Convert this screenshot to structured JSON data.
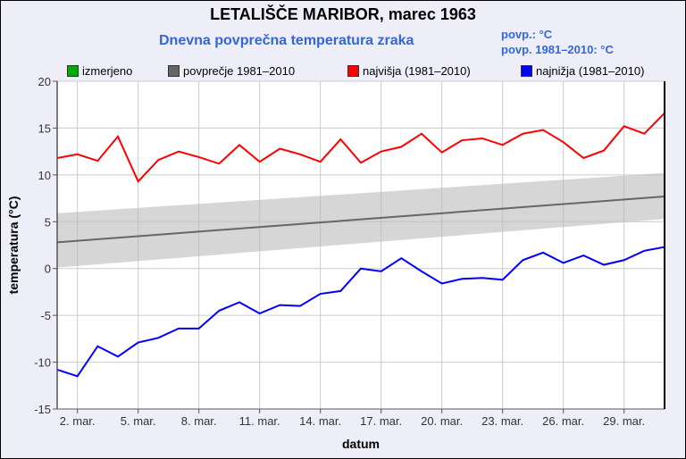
{
  "title": "LETALIŠČE MARIBOR, marec 1963",
  "subtitle": "Dnevna povprečna temperatura zraka",
  "stats": {
    "avg_label": "povp.:   °C",
    "avg_ref_label": "povp. 1981–2010:   °C"
  },
  "legend": [
    {
      "label": "izmerjeno",
      "color": "#00aa00"
    },
    {
      "label": "povprečje 1981–2010",
      "color": "#666666"
    },
    {
      "label": "najvišja (1981–2010)",
      "color": "#ff0000"
    },
    {
      "label": "najnižja (1981–2010)",
      "color": "#0000ff"
    }
  ],
  "chart_data": {
    "type": "line",
    "title": "LETALIŠČE MARIBOR, marec 1963",
    "xlabel": "datum",
    "ylabel": "temperatura (°C)",
    "xlim": [
      1,
      31
    ],
    "ylim": [
      -15,
      20
    ],
    "yticks": [
      -15,
      -10,
      -5,
      0,
      5,
      10,
      15,
      20
    ],
    "xticks": [
      {
        "day": 2,
        "label": "2. mar."
      },
      {
        "day": 5,
        "label": "5. mar."
      },
      {
        "day": 8,
        "label": "8. mar."
      },
      {
        "day": 11,
        "label": "11. mar."
      },
      {
        "day": 14,
        "label": "14. mar."
      },
      {
        "day": 17,
        "label": "17. mar."
      },
      {
        "day": 20,
        "label": "20. mar."
      },
      {
        "day": 23,
        "label": "23. mar."
      },
      {
        "day": 26,
        "label": "26. mar."
      },
      {
        "day": 29,
        "label": "29. mar."
      }
    ],
    "grid": true,
    "legend_position": "top",
    "series": [
      {
        "name": "najvišja (1981–2010)",
        "color": "#ff0000",
        "values": [
          11.8,
          12.2,
          11.5,
          14.1,
          9.3,
          11.6,
          12.5,
          11.9,
          11.2,
          13.2,
          11.4,
          12.8,
          12.2,
          11.4,
          13.8,
          11.3,
          12.5,
          13.0,
          14.4,
          12.4,
          13.7,
          13.9,
          13.2,
          14.4,
          14.8,
          13.5,
          11.8,
          12.6,
          15.2,
          14.4,
          16.6
        ]
      },
      {
        "name": "najnižja (1981–2010)",
        "color": "#0000ff",
        "values": [
          -10.8,
          -11.5,
          -8.3,
          -9.4,
          -7.9,
          -7.4,
          -6.4,
          -6.4,
          -4.5,
          -3.6,
          -4.8,
          -3.9,
          -4.0,
          -2.7,
          -2.4,
          0.0,
          -0.3,
          1.1,
          -0.3,
          -1.6,
          -1.1,
          -1.0,
          -1.2,
          0.9,
          1.7,
          0.6,
          1.4,
          0.4,
          0.9,
          1.9,
          2.3
        ]
      },
      {
        "name": "povprečje 1981–2010",
        "color": "#666666",
        "start": 2.8,
        "end": 7.7
      },
      {
        "name": "povprečje band",
        "color": "#d4d4d4",
        "lower": [
          0.1,
          5.3
        ],
        "upper": [
          5.9,
          10.2
        ]
      }
    ]
  }
}
